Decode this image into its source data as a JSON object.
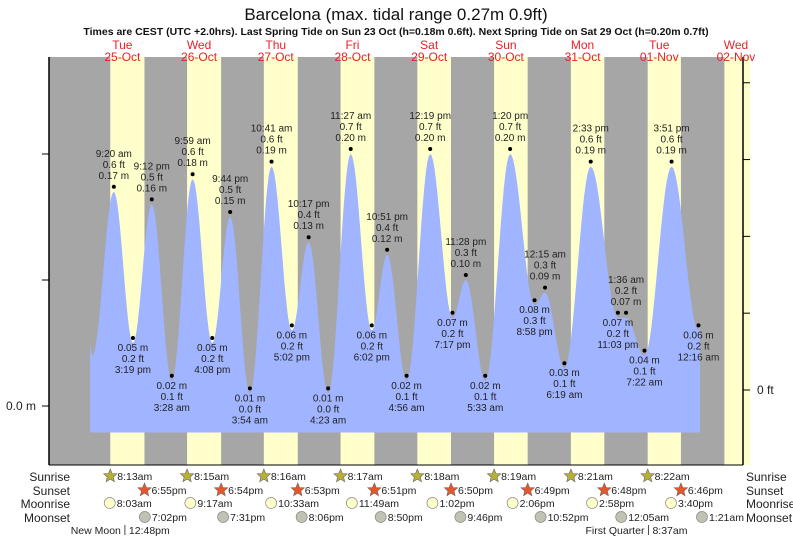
{
  "chart_data": {
    "type": "area",
    "title": "Barcelona (max. tidal range 0.27m 0.9ft)",
    "subtitle": "Times are CEST (UTC +2.0hrs). Last Spring Tide on Sun 23 Oct (h=0.18m 0.6ft). Next Spring Tide on Sat 29 Oct (h=0.20m 0.7ft)",
    "days": [
      {
        "weekday": "Tue",
        "date": "25-Oct"
      },
      {
        "weekday": "Wed",
        "date": "26-Oct"
      },
      {
        "weekday": "Thu",
        "date": "27-Oct"
      },
      {
        "weekday": "Fri",
        "date": "28-Oct"
      },
      {
        "weekday": "Sat",
        "date": "29-Oct"
      },
      {
        "weekday": "Sun",
        "date": "30-Oct"
      },
      {
        "weekday": "Mon",
        "date": "31-Oct"
      },
      {
        "weekday": "Tue",
        "date": "01-Nov"
      },
      {
        "weekday": "Wed",
        "date": "02-Nov"
      }
    ],
    "y_left": {
      "unit": "m",
      "ylim": [
        -0.05,
        0.28
      ],
      "label_zero": "0.0 m",
      "ticks": [
        0.0,
        0.1,
        0.2
      ]
    },
    "y_right": {
      "unit": "ft",
      "label_zero": "0 ft",
      "ticks_ft": [
        0,
        0.2,
        0.4,
        0.6,
        0.8
      ],
      "zero_offset_m": 0.0127
    },
    "tides": [
      {
        "date": "25-Oct",
        "time": "9:20 am",
        "m": "0.17 m",
        "ft": "0.6 ft",
        "v": 0.17,
        "type": "high"
      },
      {
        "date": "25-Oct",
        "time": "3:19 pm",
        "m": "0.05 m",
        "ft": "0.2 ft",
        "v": 0.05,
        "type": "low"
      },
      {
        "date": "25-Oct",
        "time": "9:12 pm",
        "m": "0.16 m",
        "ft": "0.5 ft",
        "v": 0.16,
        "type": "high"
      },
      {
        "date": "26-Oct",
        "time": "3:28 am",
        "m": "0.02 m",
        "ft": "0.1 ft",
        "v": 0.02,
        "type": "low"
      },
      {
        "date": "26-Oct",
        "time": "9:59 am",
        "m": "0.18 m",
        "ft": "0.6 ft",
        "v": 0.18,
        "type": "high"
      },
      {
        "date": "26-Oct",
        "time": "4:08 pm",
        "m": "0.05 m",
        "ft": "0.2 ft",
        "v": 0.05,
        "type": "low"
      },
      {
        "date": "26-Oct",
        "time": "9:44 pm",
        "m": "0.15 m",
        "ft": "0.5 ft",
        "v": 0.15,
        "type": "high"
      },
      {
        "date": "27-Oct",
        "time": "3:54 am",
        "m": "0.01 m",
        "ft": "0.0 ft",
        "v": 0.01,
        "type": "low"
      },
      {
        "date": "27-Oct",
        "time": "10:41 am",
        "m": "0.19 m",
        "ft": "0.6 ft",
        "v": 0.19,
        "type": "high"
      },
      {
        "date": "27-Oct",
        "time": "5:02 pm",
        "m": "0.06 m",
        "ft": "0.2 ft",
        "v": 0.06,
        "type": "low"
      },
      {
        "date": "27-Oct",
        "time": "10:17 pm",
        "m": "0.13 m",
        "ft": "0.4 ft",
        "v": 0.13,
        "type": "high"
      },
      {
        "date": "28-Oct",
        "time": "4:23 am",
        "m": "0.01 m",
        "ft": "0.0 ft",
        "v": 0.01,
        "type": "low"
      },
      {
        "date": "28-Oct",
        "time": "11:27 am",
        "m": "0.20 m",
        "ft": "0.7 ft",
        "v": 0.2,
        "type": "high"
      },
      {
        "date": "28-Oct",
        "time": "6:02 pm",
        "m": "0.06 m",
        "ft": "0.2 ft",
        "v": 0.06,
        "type": "low"
      },
      {
        "date": "28-Oct",
        "time": "10:51 pm",
        "m": "0.12 m",
        "ft": "0.4 ft",
        "v": 0.12,
        "type": "high"
      },
      {
        "date": "29-Oct",
        "time": "4:56 am",
        "m": "0.02 m",
        "ft": "0.1 ft",
        "v": 0.02,
        "type": "low"
      },
      {
        "date": "29-Oct",
        "time": "12:19 pm",
        "m": "0.20 m",
        "ft": "0.7 ft",
        "v": 0.2,
        "type": "high"
      },
      {
        "date": "29-Oct",
        "time": "7:17 pm",
        "m": "0.07 m",
        "ft": "0.2 ft",
        "v": 0.07,
        "type": "low"
      },
      {
        "date": "29-Oct",
        "time": "11:28 pm",
        "m": "0.10 m",
        "ft": "0.3 ft",
        "v": 0.1,
        "type": "high"
      },
      {
        "date": "30-Oct",
        "time": "5:33 am",
        "m": "0.02 m",
        "ft": "0.1 ft",
        "v": 0.02,
        "type": "low"
      },
      {
        "date": "30-Oct",
        "time": "1:20 pm",
        "m": "0.20 m",
        "ft": "0.7 ft",
        "v": 0.2,
        "type": "high"
      },
      {
        "date": "30-Oct",
        "time": "8:58 pm",
        "m": "0.08 m",
        "ft": "0.3 ft",
        "v": 0.08,
        "type": "low"
      },
      {
        "date": "31-Oct",
        "time": "12:15 am",
        "m": "0.09 m",
        "ft": "0.3 ft",
        "v": 0.09,
        "type": "high"
      },
      {
        "date": "31-Oct",
        "time": "6:19 am",
        "m": "0.03 m",
        "ft": "0.1 ft",
        "v": 0.03,
        "type": "low"
      },
      {
        "date": "31-Oct",
        "time": "2:33 pm",
        "m": "0.19 m",
        "ft": "0.6 ft",
        "v": 0.19,
        "type": "high"
      },
      {
        "date": "31-Oct",
        "time": "11:03 pm",
        "m": "0.07 m",
        "ft": "0.2 ft",
        "v": 0.07,
        "type": "low"
      },
      {
        "date": "01-Nov",
        "time": "1:36 am",
        "m": "0.07 m",
        "ft": "0.2 ft",
        "v": 0.07,
        "type": "high"
      },
      {
        "date": "01-Nov",
        "time": "7:22 am",
        "m": "0.04 m",
        "ft": "0.1 ft",
        "v": 0.04,
        "type": "low"
      },
      {
        "date": "01-Nov",
        "time": "3:51 pm",
        "m": "0.19 m",
        "ft": "0.6 ft",
        "v": 0.19,
        "type": "high"
      },
      {
        "date": "02-Nov",
        "time": "12:16 am",
        "m": "0.06 m",
        "ft": "0.2 ft",
        "v": 0.06,
        "type": "low"
      }
    ],
    "curve_start": [
      {
        "date": "25-Oct",
        "hour": 1.9,
        "v": 0.048
      },
      {
        "date": "25-Oct",
        "hour": 2.6,
        "v": 0.04
      }
    ],
    "curve_end": {
      "date": "02-Nov",
      "hour": 0.75,
      "v": 0.066
    },
    "final_daylight_start": {
      "date": "02-Nov",
      "hour": 8.38
    },
    "fill_floor_m": -0.021,
    "rows": {
      "sunrise": "Sunrise",
      "sunset": "Sunset",
      "moonrise": "Moonrise",
      "moonset": "Moonset"
    },
    "sunrise": [
      {
        "date": "25-Oct",
        "time": "8:13am"
      },
      {
        "date": "26-Oct",
        "time": "8:15am"
      },
      {
        "date": "27-Oct",
        "time": "8:16am"
      },
      {
        "date": "28-Oct",
        "time": "8:17am"
      },
      {
        "date": "29-Oct",
        "time": "8:18am"
      },
      {
        "date": "30-Oct",
        "time": "8:19am"
      },
      {
        "date": "31-Oct",
        "time": "8:21am"
      },
      {
        "date": "01-Nov",
        "time": "8:22am"
      }
    ],
    "sunset": [
      {
        "date": "25-Oct",
        "time": "6:55pm"
      },
      {
        "date": "26-Oct",
        "time": "6:54pm"
      },
      {
        "date": "27-Oct",
        "time": "6:53pm"
      },
      {
        "date": "28-Oct",
        "time": "6:51pm"
      },
      {
        "date": "29-Oct",
        "time": "6:50pm"
      },
      {
        "date": "30-Oct",
        "time": "6:49pm"
      },
      {
        "date": "31-Oct",
        "time": "6:48pm"
      },
      {
        "date": "01-Nov",
        "time": "6:46pm"
      }
    ],
    "moonrise": [
      {
        "date": "25-Oct",
        "time": "8:03am"
      },
      {
        "date": "26-Oct",
        "time": "9:17am"
      },
      {
        "date": "27-Oct",
        "time": "10:33am"
      },
      {
        "date": "28-Oct",
        "time": "11:49am"
      },
      {
        "date": "29-Oct",
        "time": "1:02pm"
      },
      {
        "date": "30-Oct",
        "time": "2:06pm"
      },
      {
        "date": "31-Oct",
        "time": "2:58pm"
      },
      {
        "date": "01-Nov",
        "time": "3:40pm"
      }
    ],
    "moonset": [
      {
        "date": "25-Oct",
        "time": "7:02pm"
      },
      {
        "date": "26-Oct",
        "time": "7:31pm"
      },
      {
        "date": "27-Oct",
        "time": "8:06pm"
      },
      {
        "date": "28-Oct",
        "time": "8:50pm"
      },
      {
        "date": "29-Oct",
        "time": "9:46pm"
      },
      {
        "date": "30-Oct",
        "time": "10:52pm"
      },
      {
        "date": "01-Nov",
        "time": "12:05am"
      },
      {
        "date": "02-Nov",
        "time": "1:21am"
      }
    ],
    "moon_phases": [
      {
        "date": "25-Oct",
        "name": "New Moon",
        "time": "12:48pm"
      },
      {
        "date": "01-Nov",
        "name": "First Quarter",
        "time": "8:37am"
      }
    ],
    "colors": {
      "night": "#a6a6a6",
      "day": "#ffffcc",
      "tide": "#a0b4ff",
      "dayLabel": "#e8202a",
      "sunrise": "#b8b034",
      "sunset": "#e2582a",
      "moonrise": "#ffffcc",
      "moonset": "#c2c2b4"
    }
  }
}
